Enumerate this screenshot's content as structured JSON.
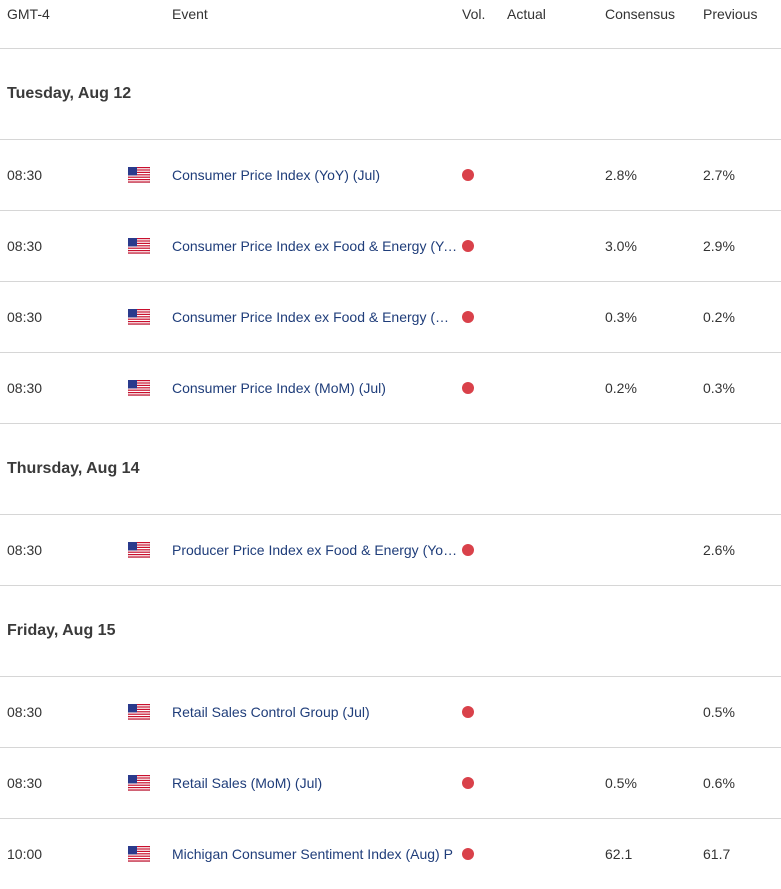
{
  "header": {
    "timezone": "GMT-4",
    "event": "Event",
    "vol": "Vol.",
    "actual": "Actual",
    "consensus": "Consensus",
    "previous": "Previous"
  },
  "colors": {
    "volatility_high": "#d9414a",
    "event_link": "#1f3d7a"
  },
  "flag_icon": "us-flag-icon",
  "days": [
    {
      "label": "Tuesday, Aug 12",
      "rows": [
        {
          "time": "08:30",
          "event": "Consumer Price Index (YoY) (Jul)",
          "actual": "",
          "consensus": "2.8%",
          "previous": "2.7%"
        },
        {
          "time": "08:30",
          "event": "Consumer Price Index ex Food & Energy (YoY) (Jul)",
          "actual": "",
          "consensus": "3.0%",
          "previous": "2.9%"
        },
        {
          "time": "08:30",
          "event": "Consumer Price Index ex Food & Energy (MoM) (Jul)",
          "actual": "",
          "consensus": "0.3%",
          "previous": "0.2%"
        },
        {
          "time": "08:30",
          "event": "Consumer Price Index (MoM) (Jul)",
          "actual": "",
          "consensus": "0.2%",
          "previous": "0.3%"
        }
      ]
    },
    {
      "label": "Thursday, Aug 14",
      "rows": [
        {
          "time": "08:30",
          "event": "Producer Price Index ex Food & Energy (YoY) (Jul)",
          "actual": "",
          "consensus": "",
          "previous": "2.6%"
        }
      ]
    },
    {
      "label": "Friday, Aug 15",
      "rows": [
        {
          "time": "08:30",
          "event": "Retail Sales Control Group (Jul)",
          "actual": "",
          "consensus": "",
          "previous": "0.5%"
        },
        {
          "time": "08:30",
          "event": "Retail Sales (MoM) (Jul)",
          "actual": "",
          "consensus": "0.5%",
          "previous": "0.6%"
        },
        {
          "time": "10:00",
          "event": "Michigan Consumer Sentiment Index (Aug) P",
          "actual": "",
          "consensus": "62.1",
          "previous": "61.7"
        }
      ]
    }
  ]
}
